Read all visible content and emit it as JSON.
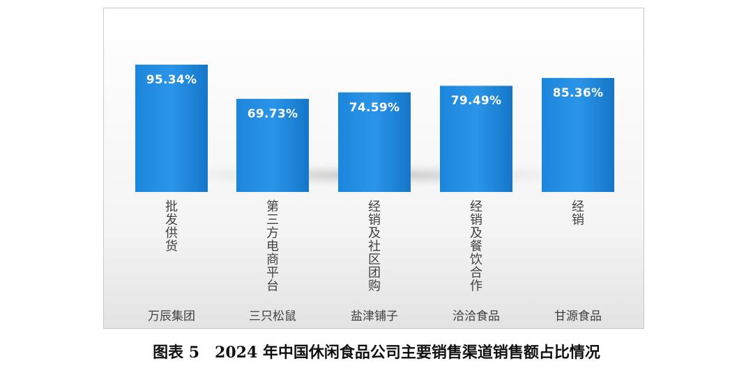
{
  "caption": "图表 5　2024 年中国休闲食品公司主要销售渠道销售额占比情况",
  "chart_data": {
    "type": "bar",
    "title": "",
    "xlabel": "",
    "ylabel": "",
    "ylim": [
      0,
      100
    ],
    "grid": false,
    "legend": "none",
    "bar_color": "#1a7fd4",
    "categories": [
      "万辰集团",
      "三只松鼠",
      "盐津铺子",
      "洽洽食品",
      "甘源食品"
    ],
    "channels": [
      "批发供货",
      "第三方电商平台",
      "经销及社区团购",
      "经销及餐饮合作",
      "经销"
    ],
    "values": [
      95.34,
      69.73,
      74.59,
      79.49,
      85.36
    ],
    "data_labels": [
      "95.34%",
      "69.73%",
      "74.59%",
      "79.49%",
      "85.36%"
    ]
  }
}
